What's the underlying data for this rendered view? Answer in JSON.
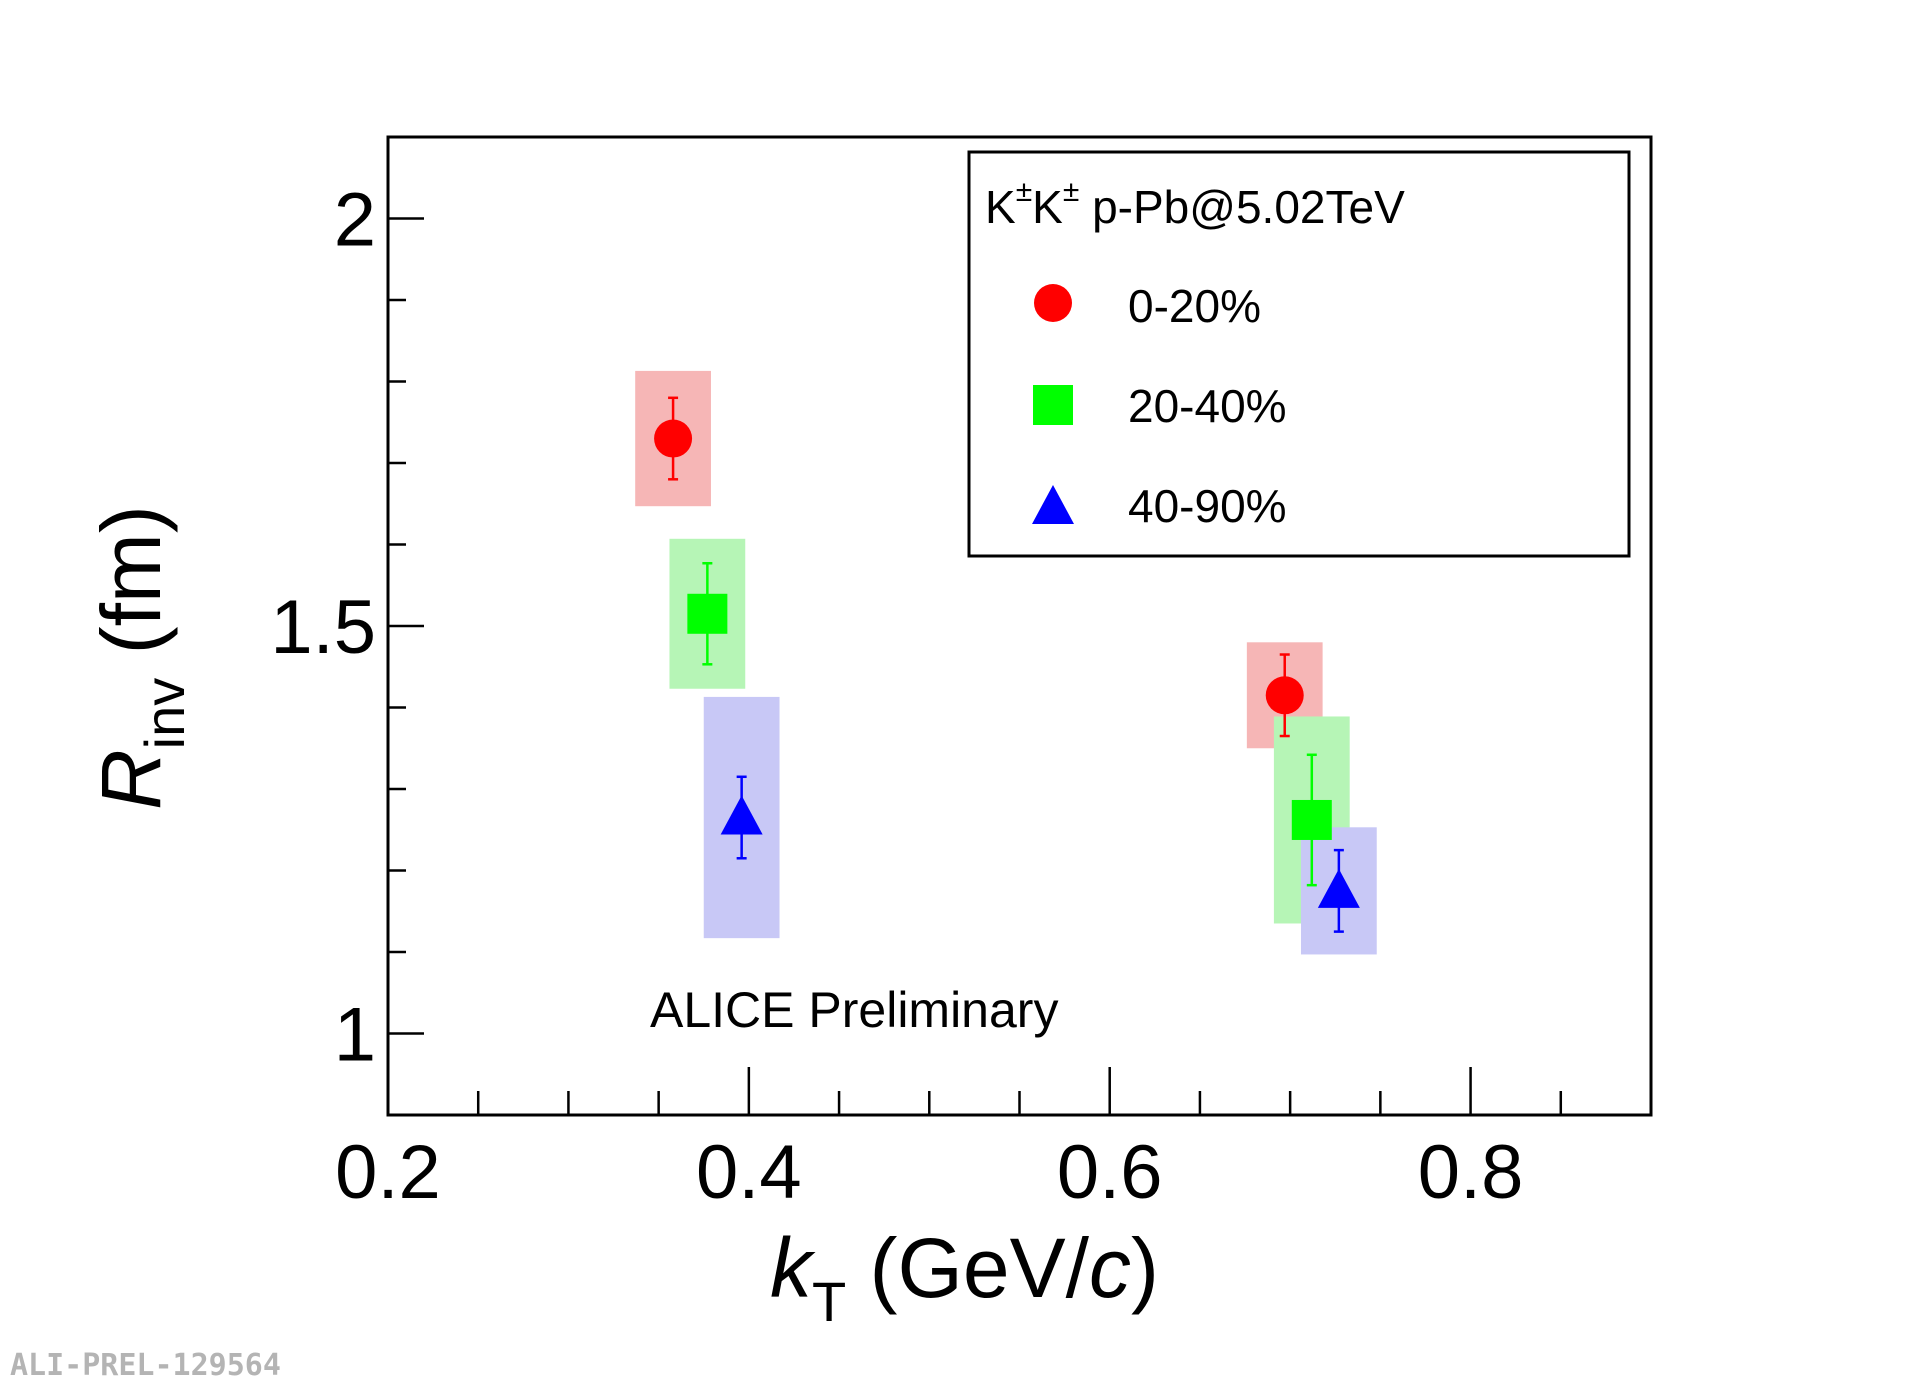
{
  "chart_data": {
    "type": "scatter",
    "title": "",
    "xlabel": {
      "main": "k",
      "sub": "T",
      "unit_open": " (GeV/",
      "unit_italic": "c",
      "unit_close": ")"
    },
    "ylabel": {
      "main": "R",
      "sub": "inv",
      "unit": " (fm)"
    },
    "xlim": [
      0.2,
      0.9
    ],
    "ylim": [
      0.9,
      2.1
    ],
    "xticks": [
      0.2,
      0.4,
      0.6,
      0.8
    ],
    "xtick_labels": [
      "0.2",
      "0.4",
      "0.6",
      "0.8"
    ],
    "yticks": [
      1.0,
      1.5,
      2.0
    ],
    "ytick_labels": [
      "1",
      "1.5",
      "2"
    ],
    "legend": {
      "title_k1": "K",
      "title_sup1": "±",
      "title_k2": "K",
      "title_sup2": "±",
      "title_rest": " p-Pb@5.02TeV",
      "position": "top-right"
    },
    "series": [
      {
        "name": "0-20%",
        "color": "#ff0000",
        "sys_color": "#f6b6b6",
        "marker": "circle",
        "points": [
          {
            "x": 0.358,
            "y": 1.73,
            "stat": 0.05,
            "sys": 0.083,
            "sys_w": 0.021
          },
          {
            "x": 0.697,
            "y": 1.415,
            "stat": 0.05,
            "sys": 0.065,
            "sys_w": 0.021
          }
        ]
      },
      {
        "name": "20-40%",
        "color": "#00ff00",
        "sys_color": "#b6f5b6",
        "marker": "square",
        "points": [
          {
            "x": 0.377,
            "y": 1.515,
            "stat": 0.062,
            "sys": 0.092,
            "sys_w": 0.021
          },
          {
            "x": 0.712,
            "y": 1.262,
            "stat": 0.08,
            "sys": 0.127,
            "sys_w": 0.021
          }
        ]
      },
      {
        "name": "40-90%",
        "color": "#0000ff",
        "sys_color": "#c8c8f6",
        "marker": "triangle",
        "points": [
          {
            "x": 0.396,
            "y": 1.265,
            "stat": 0.05,
            "sys": 0.148,
            "sys_w": 0.021
          },
          {
            "x": 0.727,
            "y": 1.175,
            "stat": 0.05,
            "sys": 0.078,
            "sys_w": 0.021
          }
        ]
      }
    ],
    "annotation": "ALICE Preliminary"
  },
  "figure_id": "ALI-PREL-129564"
}
